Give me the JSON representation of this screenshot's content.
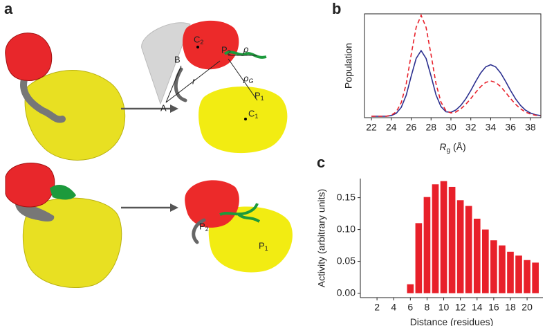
{
  "panel_labels": [
    "a",
    "b",
    "c"
  ],
  "diagram": {
    "labels": [
      {
        "text": "C",
        "sub": "2"
      },
      {
        "text": "P",
        "sub": "2"
      },
      {
        "text": "ρ",
        "sub": ""
      },
      {
        "text": "ρ",
        "sub": "G"
      },
      {
        "text": "P",
        "sub": "1"
      },
      {
        "text": "B",
        "sub": ""
      },
      {
        "text": "r",
        "sub": ""
      },
      {
        "text": "A",
        "sub": ""
      },
      {
        "text": "C",
        "sub": "1"
      },
      {
        "text": "P",
        "sub": "2"
      },
      {
        "text": "P",
        "sub": "1"
      }
    ]
  },
  "chart_data": [
    {
      "type": "line",
      "y_label": "Population",
      "x_label": "R",
      "x_label_sub": "g",
      "x_label_unit": "(Å)",
      "x": [
        22,
        22.5,
        23,
        23.5,
        24,
        24.5,
        25,
        25.5,
        26,
        26.5,
        27,
        27.5,
        28,
        28.5,
        29,
        29.5,
        30,
        30.5,
        31,
        31.5,
        32,
        32.5,
        33,
        33.5,
        34,
        34.5,
        35,
        35.5,
        36,
        36.5,
        37,
        37.5,
        38,
        38.5,
        39
      ],
      "series": [
        {
          "color": "#2b2f8f",
          "dash": false,
          "values": [
            0,
            0,
            0,
            0,
            0.007,
            0.029,
            0.088,
            0.208,
            0.397,
            0.572,
            0.65,
            0.572,
            0.398,
            0.211,
            0.095,
            0.044,
            0.039,
            0.062,
            0.108,
            0.173,
            0.255,
            0.346,
            0.429,
            0.489,
            0.51,
            0.489,
            0.429,
            0.346,
            0.255,
            0.173,
            0.108,
            0.061,
            0.032,
            0.015,
            0.007
          ]
        },
        {
          "color": "#e8202a",
          "dash": true,
          "values": [
            0,
            0,
            0,
            0,
            0.011,
            0.044,
            0.135,
            0.32,
            0.61,
            0.88,
            1.0,
            0.88,
            0.61,
            0.321,
            0.14,
            0.054,
            0.033,
            0.042,
            0.074,
            0.119,
            0.175,
            0.237,
            0.294,
            0.335,
            0.35,
            0.335,
            0.294,
            0.237,
            0.175,
            0.119,
            0.074,
            0.042,
            0.022,
            0.01,
            0.005
          ]
        }
      ],
      "xlim": [
        21.3,
        39.05
      ],
      "ylim": [
        -0.014,
        1.014
      ],
      "xticks": [
        22,
        24,
        26,
        28,
        30,
        32,
        34,
        36,
        38
      ]
    },
    {
      "type": "bar",
      "y_label": "Activity (arbitrary units)",
      "x_label": "Distance (residues)",
      "x": [
        1,
        2,
        3,
        4,
        5,
        6,
        7,
        8,
        9,
        10,
        11,
        12,
        13,
        14,
        15,
        16,
        17,
        18,
        19,
        20,
        21
      ],
      "values": [
        0,
        0,
        0,
        0,
        0,
        0.014,
        0.11,
        0.151,
        0.171,
        0.176,
        0.167,
        0.146,
        0.137,
        0.117,
        0.1,
        0.083,
        0.075,
        0.065,
        0.059,
        0.052,
        0.048
      ],
      "color": "#e8202a",
      "xlim": [
        0,
        21.9
      ],
      "ylim": [
        -0.007,
        0.18
      ],
      "xticks": [
        2,
        4,
        6,
        8,
        10,
        12,
        14,
        16,
        18,
        20
      ],
      "yticks": [
        {
          "value": 0,
          "label": "0.00"
        },
        {
          "value": 0.05,
          "label": "0.05"
        },
        {
          "value": 0.1,
          "label": "0.10"
        },
        {
          "value": 0.15,
          "label": "0.15"
        }
      ]
    }
  ]
}
